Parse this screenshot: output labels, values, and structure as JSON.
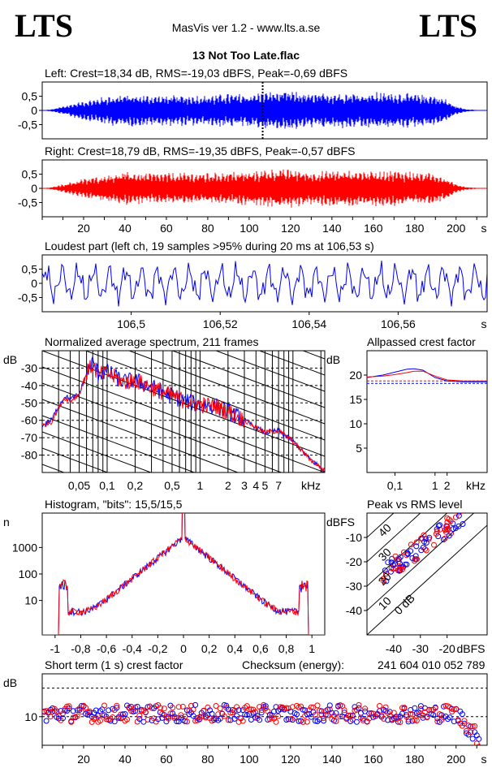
{
  "header": {
    "logo_left": "LTS",
    "logo_right": "LTS",
    "app_title": "MasVis ver 1.2 - www.lts.a.se",
    "file_title": "13 Not Too Late.flac"
  },
  "chart_data": [
    {
      "type": "area",
      "title": "Left: Crest=18,34 dB, RMS=-19,03 dBFS, Peak=-0,69 dBFS",
      "yticks": [
        "0,5",
        "0",
        "-0,5"
      ],
      "ylim": [
        -1,
        1
      ],
      "xlim": [
        0,
        215
      ],
      "marker_x": 106.53,
      "color": "#0000ff",
      "envelope": {
        "t": [
          0,
          5,
          10,
          15,
          20,
          25,
          30,
          40,
          50,
          60,
          70,
          80,
          90,
          100,
          110,
          120,
          130,
          140,
          150,
          160,
          170,
          180,
          190,
          195,
          200,
          205,
          210,
          215
        ],
        "amp": [
          0,
          0.05,
          0.15,
          0.25,
          0.35,
          0.4,
          0.5,
          0.6,
          0.55,
          0.55,
          0.55,
          0.55,
          0.6,
          0.6,
          0.7,
          0.7,
          0.6,
          0.65,
          0.65,
          0.65,
          0.65,
          0.6,
          0.55,
          0.4,
          0.15,
          0.05,
          0.02,
          0
        ]
      }
    },
    {
      "type": "area",
      "title": "Right: Crest=18,79 dB, RMS=-19,35 dBFS, Peak=-0,57 dBFS",
      "yticks": [
        "0,5",
        "0",
        "-0,5"
      ],
      "ylim": [
        -1,
        1
      ],
      "xlim": [
        0,
        215
      ],
      "xticks": [
        "20",
        "40",
        "60",
        "80",
        "100",
        "120",
        "140",
        "160",
        "180",
        "200"
      ],
      "xunit": "s",
      "color": "#ff0000",
      "envelope": {
        "t": [
          0,
          5,
          10,
          15,
          20,
          25,
          30,
          40,
          50,
          60,
          70,
          80,
          90,
          100,
          110,
          120,
          130,
          140,
          150,
          160,
          170,
          180,
          190,
          195,
          200,
          205,
          210,
          215
        ],
        "amp": [
          0,
          0.05,
          0.15,
          0.25,
          0.35,
          0.4,
          0.5,
          0.6,
          0.55,
          0.55,
          0.55,
          0.55,
          0.6,
          0.6,
          0.7,
          0.7,
          0.6,
          0.65,
          0.65,
          0.65,
          0.65,
          0.6,
          0.55,
          0.4,
          0.15,
          0.05,
          0.02,
          0
        ]
      }
    },
    {
      "type": "line",
      "title": "Loudest part (left  ch, 19 samples >95% during 20 ms at 106,53 s)",
      "yticks": [
        "0,5",
        "0",
        "-0,5"
      ],
      "ylim": [
        -1,
        1
      ],
      "xlim": [
        106.48,
        106.58
      ],
      "xticks": [
        "106,5",
        "106,52",
        "106,54",
        "106,56"
      ],
      "xunit": "s",
      "color": "#0000ff"
    },
    {
      "type": "line",
      "title": "Normalized average spectrum, 211 frames",
      "ylabel": "dB",
      "yticks": [
        "-30",
        "-40",
        "-50",
        "-60",
        "-70",
        "-80"
      ],
      "ylim": [
        -90,
        -20
      ],
      "xscale": "log",
      "xlim": [
        0.02,
        22
      ],
      "xticks": [
        "0,05",
        "0,1",
        "0,2",
        "0,5",
        "1",
        "2",
        "3",
        "4",
        "5",
        "7"
      ],
      "xunit": "kHz",
      "series": [
        {
          "color": "#0000ff",
          "f": [
            0.02,
            0.025,
            0.03,
            0.035,
            0.04,
            0.05,
            0.06,
            0.07,
            0.08,
            0.1,
            0.15,
            0.2,
            0.3,
            0.5,
            0.7,
            1,
            1.5,
            2,
            3,
            5,
            7,
            10,
            15,
            22
          ],
          "db": [
            -63,
            -60,
            -52,
            -46,
            -48,
            -45,
            -33,
            -27,
            -33,
            -32,
            -38,
            -37,
            -41,
            -46,
            -49,
            -51,
            -52,
            -55,
            -60,
            -67,
            -66,
            -72,
            -82,
            -89
          ]
        },
        {
          "color": "#ff0000",
          "f": [
            0.02,
            0.025,
            0.03,
            0.035,
            0.04,
            0.05,
            0.06,
            0.07,
            0.08,
            0.1,
            0.15,
            0.2,
            0.3,
            0.5,
            0.7,
            1,
            1.5,
            2,
            3,
            5,
            7,
            10,
            15,
            22
          ],
          "db": [
            -63,
            -61,
            -53,
            -47,
            -49,
            -45,
            -33,
            -28,
            -34,
            -33,
            -38,
            -37,
            -41,
            -46,
            -49,
            -51,
            -52,
            -55,
            -60,
            -67,
            -66,
            -72,
            -82,
            -89
          ]
        }
      ]
    },
    {
      "type": "line",
      "title": "Allpassed crest factor",
      "ylabel": "dB",
      "yticks": [
        "20",
        "15",
        "10",
        "5"
      ],
      "ylim": [
        0,
        25
      ],
      "xscale": "log",
      "xticks": [
        "0,1",
        "1",
        "2"
      ],
      "xunit": "kHz",
      "series": [
        {
          "color": "#0000ff",
          "f": [
            0.02,
            0.05,
            0.1,
            0.2,
            0.3,
            0.5,
            1,
            2,
            5,
            20
          ],
          "db": [
            19.5,
            20,
            20.6,
            21.2,
            21.3,
            21,
            19.5,
            18.8,
            18.6,
            18.6
          ]
        },
        {
          "color": "#ff0000",
          "f": [
            0.02,
            0.05,
            0.1,
            0.2,
            0.3,
            0.5,
            1,
            2,
            5,
            20
          ],
          "db": [
            19.6,
            19.8,
            20.1,
            20.5,
            20.8,
            20.8,
            19.8,
            19,
            18.8,
            18.8
          ]
        }
      ],
      "dashed_levels": [
        {
          "color": "#0000ff",
          "db": 18.3
        },
        {
          "color": "#ff0000",
          "db": 18.8
        }
      ]
    },
    {
      "type": "line",
      "title": "Histogram, \"bits\": 15,5/15,5",
      "ylabel": "n",
      "yticks": [
        "1000",
        "100",
        "10"
      ],
      "yscale": "log",
      "xlim": [
        -1.1,
        1.1
      ],
      "xticks": [
        "-1",
        "-0,8",
        "-0,6",
        "-0,4",
        "-0,2",
        "0",
        "0,2",
        "0,4",
        "0,6",
        "0,8",
        "1"
      ]
    },
    {
      "type": "scatter",
      "title": "Peak vs RMS level",
      "ylabel": "dBFS",
      "yticks": [
        "-10",
        "-20",
        "-30",
        "-40"
      ],
      "xticks": [
        "-40",
        "-30",
        "-20"
      ],
      "xunit": "dBFS",
      "xlim": [
        -50,
        -5
      ],
      "ylim": [
        -50,
        0
      ],
      "diag_labels": [
        "40",
        "30",
        "20",
        "10",
        "0 dB"
      ]
    },
    {
      "type": "scatter",
      "title": "Short term (1 s) crest factor",
      "ylabel": "dB",
      "yticks": [
        "10"
      ],
      "ylim": [
        0,
        25
      ],
      "xlim": [
        0,
        215
      ],
      "xticks": [
        "20",
        "40",
        "60",
        "80",
        "100",
        "120",
        "140",
        "160",
        "180",
        "200"
      ],
      "xunit": "s",
      "dashed_levels": [
        10,
        20
      ],
      "checksum_label": "Checksum (energy):",
      "checksum_value": "241 604 010 052 789"
    }
  ]
}
